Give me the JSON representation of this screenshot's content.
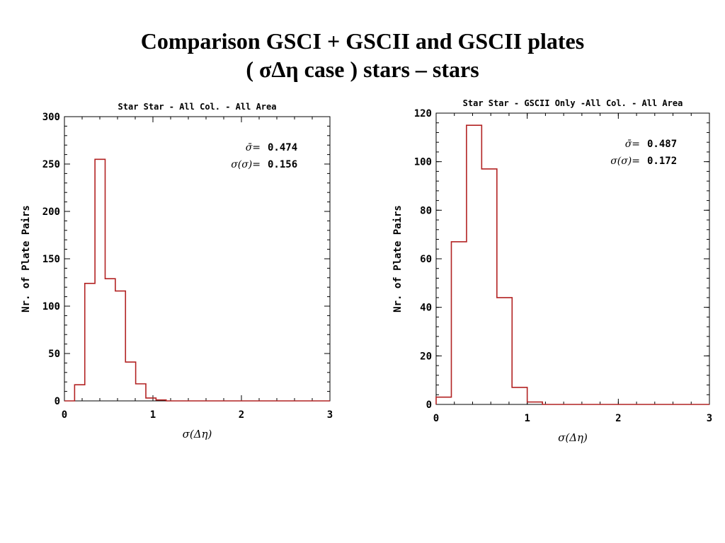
{
  "slide": {
    "title_line1": "Comparison GSCI + GSCII and GSCII plates",
    "title_line2": "( σΔη case ) stars – stars"
  },
  "colors": {
    "histogram": "#b22222",
    "axes": "#000000"
  },
  "chart_data": [
    {
      "type": "bar",
      "style": "step-histogram",
      "title": "Star Star - All Col. - All Area",
      "xlabel": "σ(Δη)",
      "ylabel": "Nr. of Plate Pairs",
      "xlim": [
        0,
        3
      ],
      "ylim": [
        0,
        300
      ],
      "xticks": [
        0,
        1,
        2,
        3
      ],
      "yticks": [
        0,
        50,
        100,
        150,
        200,
        250,
        300
      ],
      "bin_width": 0.115,
      "bin_starts": [
        0.0,
        0.115,
        0.23,
        0.345,
        0.46,
        0.575,
        0.69,
        0.805,
        0.92,
        1.035
      ],
      "values": [
        0,
        17,
        124,
        255,
        129,
        116,
        41,
        18,
        3,
        1
      ],
      "stats": [
        {
          "label": "σ̄=",
          "value": "0.474"
        },
        {
          "label": "σ(σ)=",
          "value": "0.156"
        }
      ]
    },
    {
      "type": "bar",
      "style": "step-histogram",
      "title": "Star Star - GSCII Only -All Col. - All Area",
      "xlabel": "σ(Δη)",
      "ylabel": "Nr. of Plate Pairs",
      "xlim": [
        0,
        3
      ],
      "ylim": [
        0,
        120
      ],
      "xticks": [
        0,
        1,
        2,
        3
      ],
      "yticks": [
        0,
        20,
        40,
        60,
        80,
        100,
        120
      ],
      "bin_width": 0.167,
      "bin_starts": [
        0.0,
        0.167,
        0.333,
        0.5,
        0.667,
        0.833,
        1.0
      ],
      "values": [
        3,
        67,
        115,
        97,
        44,
        7,
        1
      ],
      "stats": [
        {
          "label": "σ̄=",
          "value": "0.487"
        },
        {
          "label": "σ(σ)=",
          "value": "0.172"
        }
      ]
    }
  ]
}
